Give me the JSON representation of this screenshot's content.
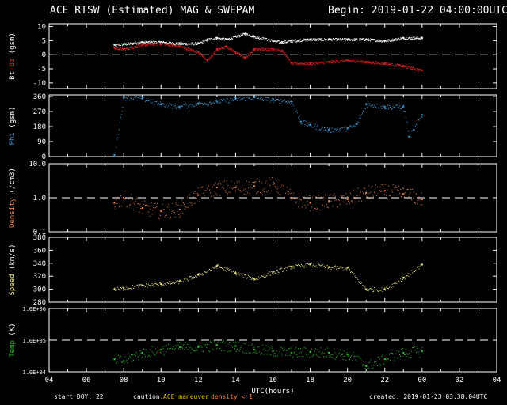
{
  "header": {
    "title": "ACE RTSW (Estimated) MAG & SWEPAM",
    "begin": "Begin: 2019-01-22 04:00:00UTC"
  },
  "footer": {
    "start_doy": "start DOY:  22",
    "caution": "caution:",
    "maneuver": "ACE maneuver",
    "density_note": "density < 1",
    "created": "created: 2019-01-23 03:38:04UTC"
  },
  "colors": {
    "bt": "#ffffff",
    "bz": "#e02020",
    "phi": "#3aa0e0",
    "density": "#e8804a",
    "speed": "#f0f080",
    "temp": "#30c030",
    "axis": "#ffffff",
    "caution_maneuver": "#e0c000",
    "caution_density": "#ff8040"
  },
  "chart_data": [
    {
      "type": "scatter",
      "panel": "magnetic field",
      "ylabel": "Bt  Bz  (gsm)",
      "ylim": [
        -12,
        11
      ],
      "yticks": [
        "10",
        "5",
        "0",
        "-5",
        "-10"
      ],
      "reference_line": 0,
      "series": [
        {
          "name": "Bt",
          "x": [
            7.5,
            8,
            9,
            10,
            11,
            12,
            12.5,
            13,
            13.5,
            14,
            14.5,
            15,
            16,
            16.5,
            17,
            18,
            19,
            20,
            21,
            22,
            23,
            24
          ],
          "y": [
            3.5,
            3.8,
            4.5,
            4.5,
            4.0,
            4.0,
            5.5,
            6.0,
            5.5,
            6.5,
            7.5,
            6.5,
            5.0,
            4.5,
            5.0,
            5.5,
            5.5,
            5.5,
            5.5,
            5.0,
            6.0,
            6.0
          ]
        },
        {
          "name": "Bz",
          "x": [
            7.5,
            8,
            9,
            10,
            11,
            12,
            12.5,
            13,
            13.5,
            14,
            14.5,
            15,
            16,
            16.5,
            17,
            18,
            19,
            20,
            21,
            22,
            23,
            24
          ],
          "y": [
            2.5,
            2.0,
            3.5,
            4.0,
            3.0,
            1.0,
            -2.0,
            2.0,
            3.0,
            1.0,
            -1.0,
            2.0,
            2.0,
            1.5,
            -3.0,
            -3.0,
            -2.5,
            -2.0,
            -2.5,
            -3.0,
            -4.0,
            -5.5
          ]
        }
      ]
    },
    {
      "type": "scatter",
      "panel": "phi",
      "ylabel": "Phi (gsm)",
      "ylim": [
        0,
        370
      ],
      "yticks": [
        "360",
        "270",
        "180",
        "90",
        "0"
      ],
      "series": [
        {
          "name": "Phi",
          "x": [
            7.5,
            8,
            9,
            10,
            11,
            12,
            13,
            14,
            15,
            16,
            17,
            17.5,
            18,
            19,
            20,
            20.5,
            21,
            22,
            23,
            23.3,
            24
          ],
          "y": [
            10,
            355,
            350,
            315,
            300,
            320,
            330,
            345,
            355,
            340,
            330,
            210,
            190,
            160,
            170,
            195,
            315,
            300,
            300,
            120,
            250
          ]
        }
      ]
    },
    {
      "type": "scatter",
      "panel": "density",
      "ylabel": "Density (/cm3)",
      "yscale": "log",
      "ylim": [
        0.1,
        10
      ],
      "yticks": [
        "10.0",
        "1.0",
        "0.1"
      ],
      "reference_line": 1,
      "series": [
        {
          "name": "Density",
          "x": [
            7.5,
            8,
            9,
            10,
            11,
            12,
            13,
            14,
            15,
            16,
            17,
            18,
            19,
            20,
            21,
            22,
            23,
            24
          ],
          "y": [
            0.7,
            1.0,
            0.5,
            0.4,
            0.45,
            1.2,
            2.0,
            2.0,
            2.2,
            2.5,
            1.0,
            0.7,
            0.8,
            0.9,
            1.4,
            1.6,
            1.3,
            0.9
          ]
        }
      ]
    },
    {
      "type": "scatter",
      "panel": "speed",
      "ylabel": "Speed (km/s)",
      "ylim": [
        280,
        380
      ],
      "yticks": [
        "380",
        "360",
        "340",
        "320",
        "300",
        "280"
      ],
      "series": [
        {
          "name": "Speed",
          "x": [
            7.5,
            8,
            9,
            10,
            11,
            12,
            13,
            14,
            15,
            16,
            17,
            18,
            19,
            20,
            21,
            22,
            23,
            24
          ],
          "y": [
            300,
            302,
            306,
            308,
            312,
            322,
            336,
            325,
            316,
            326,
            335,
            338,
            334,
            333,
            300,
            300,
            318,
            338
          ]
        }
      ]
    },
    {
      "type": "scatter",
      "panel": "temperature",
      "ylabel": "Temp (K)",
      "yscale": "log",
      "ylim": [
        10000,
        1000000
      ],
      "yticks": [
        "1.0E+06",
        "1.0E+05",
        "1.0E+04"
      ],
      "reference_line": 100000,
      "series": [
        {
          "name": "Temp",
          "x": [
            7.5,
            8,
            9,
            10,
            11,
            12,
            13,
            14,
            15,
            16,
            17,
            18,
            19,
            20,
            21,
            22,
            23,
            24
          ],
          "y": [
            25000,
            22000,
            40000,
            50000,
            60000,
            60000,
            70000,
            65000,
            50000,
            45000,
            40000,
            42000,
            40000,
            35000,
            15000,
            25000,
            40000,
            45000
          ]
        }
      ]
    }
  ],
  "x_axis": {
    "xlabel": "UTC(hours)",
    "xlim": [
      4,
      28
    ],
    "ticks": [
      "04",
      "06",
      "08",
      "10",
      "12",
      "14",
      "16",
      "18",
      "20",
      "22",
      "00",
      "02",
      "04"
    ]
  }
}
